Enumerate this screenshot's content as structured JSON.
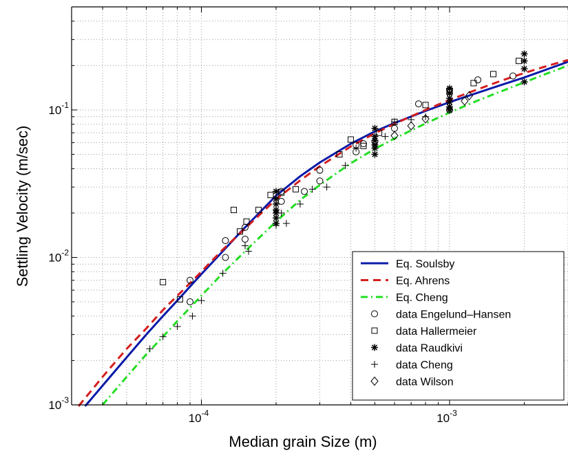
{
  "chart_data": {
    "type": "line",
    "title": "",
    "xlabel": "Median grain Size (m)",
    "ylabel": "Settling Velocity (m/sec)",
    "xscale": "log",
    "yscale": "log",
    "xlim": [
      3e-05,
      0.003
    ],
    "ylim": [
      0.001,
      0.5
    ],
    "grid": true,
    "legend_position": "bottom-right",
    "x_ticks": [
      {
        "base": "10",
        "exp": "-4",
        "value": 0.0001
      },
      {
        "base": "10",
        "exp": "-3",
        "value": 0.001
      }
    ],
    "y_ticks": [
      {
        "base": "10",
        "exp": "-3",
        "value": 0.001
      },
      {
        "base": "10",
        "exp": "-2",
        "value": 0.01
      },
      {
        "base": "10",
        "exp": "-1",
        "value": 0.1
      }
    ],
    "series": [
      {
        "name": "Eq. Soulsby",
        "kind": "line",
        "style": "solid",
        "color": "#0a1aa8",
        "x": [
          3.4e-05,
          4e-05,
          5e-05,
          6e-05,
          7e-05,
          8e-05,
          0.0001,
          0.00012,
          0.00015,
          0.0002,
          0.00025,
          0.0003,
          0.0004,
          0.0005,
          0.0006,
          0.0008,
          0.001,
          0.0013,
          0.0016,
          0.002,
          0.0025,
          0.003
        ],
        "y": [
          0.00098,
          0.00135,
          0.0021,
          0.003,
          0.004,
          0.0051,
          0.0077,
          0.0107,
          0.016,
          0.0262,
          0.0355,
          0.044,
          0.059,
          0.0715,
          0.0815,
          0.0985,
          0.113,
          0.131,
          0.147,
          0.166,
          0.19,
          0.212
        ]
      },
      {
        "name": "Eq. Ahrens",
        "kind": "line",
        "style": "dashed",
        "color": "#d41e1e",
        "x": [
          3.2e-05,
          4e-05,
          5e-05,
          6e-05,
          7e-05,
          8e-05,
          0.0001,
          0.00012,
          0.00015,
          0.0002,
          0.00025,
          0.0003,
          0.0004,
          0.0005,
          0.0006,
          0.0008,
          0.001,
          0.0013,
          0.0016,
          0.002,
          0.0025,
          0.003
        ],
        "y": [
          0.00098,
          0.00155,
          0.0024,
          0.0033,
          0.0044,
          0.0055,
          0.008,
          0.011,
          0.0157,
          0.0248,
          0.0333,
          0.0415,
          0.0565,
          0.0695,
          0.0805,
          0.1,
          0.117,
          0.138,
          0.157,
          0.178,
          0.2,
          0.218
        ]
      },
      {
        "name": "Eq. Cheng",
        "kind": "line",
        "style": "dashdot",
        "color": "#22dd22",
        "x": [
          4e-05,
          5e-05,
          6e-05,
          7e-05,
          8e-05,
          0.0001,
          0.00012,
          0.00015,
          0.0002,
          0.00025,
          0.0003,
          0.0004,
          0.0005,
          0.0006,
          0.0008,
          0.001,
          0.0013,
          0.0016,
          0.002,
          0.0025,
          0.003
        ],
        "y": [
          0.001,
          0.00155,
          0.0022,
          0.0029,
          0.0037,
          0.0055,
          0.0076,
          0.011,
          0.0175,
          0.0245,
          0.031,
          0.0435,
          0.0545,
          0.064,
          0.081,
          0.096,
          0.116,
          0.133,
          0.154,
          0.178,
          0.2
        ]
      },
      {
        "name": "data Engelund–Hansen",
        "kind": "marker",
        "marker": "o",
        "x": [
          9e-05,
          9e-05,
          0.000125,
          0.000125,
          0.00015,
          0.00015,
          0.00021,
          0.00021,
          0.00026,
          0.0003,
          0.0003,
          0.00042,
          0.00042,
          0.00045,
          0.0005,
          0.0006,
          0.00075,
          0.001,
          0.001,
          0.0013,
          0.0018
        ],
        "y": [
          0.007,
          0.005,
          0.013,
          0.01,
          0.016,
          0.0133,
          0.028,
          0.024,
          0.028,
          0.039,
          0.033,
          0.052,
          0.058,
          0.059,
          0.061,
          0.075,
          0.11,
          0.1,
          0.137,
          0.16,
          0.17
        ]
      },
      {
        "name": "data Hallermeier",
        "kind": "marker",
        "marker": "square",
        "x": [
          7e-05,
          8.2e-05,
          0.000135,
          0.000143,
          0.000152,
          0.00017,
          0.00019,
          0.00021,
          0.00024,
          0.00036,
          0.0004,
          0.00045,
          0.00052,
          0.0006,
          0.0008,
          0.001,
          0.00125,
          0.0015,
          0.0019
        ],
        "y": [
          0.0068,
          0.0052,
          0.021,
          0.015,
          0.0175,
          0.021,
          0.0265,
          0.0275,
          0.029,
          0.05,
          0.063,
          0.057,
          0.07,
          0.083,
          0.108,
          0.133,
          0.152,
          0.175,
          0.215
        ]
      },
      {
        "name": "data Raudkivi",
        "kind": "marker",
        "marker": "asterisk",
        "x": [
          0.0002,
          0.0002,
          0.0002,
          0.0002,
          0.0002,
          0.0002,
          0.0002,
          0.0005,
          0.0005,
          0.0005,
          0.0005,
          0.0005,
          0.0005,
          0.001,
          0.001,
          0.001,
          0.001,
          0.001,
          0.001,
          0.002,
          0.002,
          0.002,
          0.002
        ],
        "y": [
          0.028,
          0.025,
          0.023,
          0.021,
          0.02,
          0.0185,
          0.017,
          0.075,
          0.066,
          0.062,
          0.058,
          0.055,
          0.05,
          0.14,
          0.13,
          0.12,
          0.113,
          0.105,
          0.1,
          0.24,
          0.215,
          0.19,
          0.155
        ]
      },
      {
        "name": "data Cheng",
        "kind": "marker",
        "marker": "plus",
        "x": [
          6.2e-05,
          7e-05,
          8e-05,
          9.2e-05,
          0.0001,
          0.000122,
          0.00015,
          0.000155,
          0.0002,
          0.00021,
          0.00022,
          0.00025,
          0.00028,
          0.00032,
          0.00038,
          0.00042,
          0.00055,
          0.0006,
          0.0007,
          0.0008
        ],
        "y": [
          0.0024,
          0.0029,
          0.0034,
          0.004,
          0.0051,
          0.0078,
          0.012,
          0.011,
          0.0165,
          0.02,
          0.017,
          0.023,
          0.029,
          0.03,
          0.042,
          0.055,
          0.066,
          0.083,
          0.086,
          0.09
        ]
      },
      {
        "name": "data Wilson",
        "kind": "marker",
        "marker": "diamond",
        "x": [
          0.0006,
          0.0007,
          0.0008,
          0.00115,
          0.0012
        ],
        "y": [
          0.067,
          0.078,
          0.087,
          0.115,
          0.125
        ]
      }
    ]
  }
}
